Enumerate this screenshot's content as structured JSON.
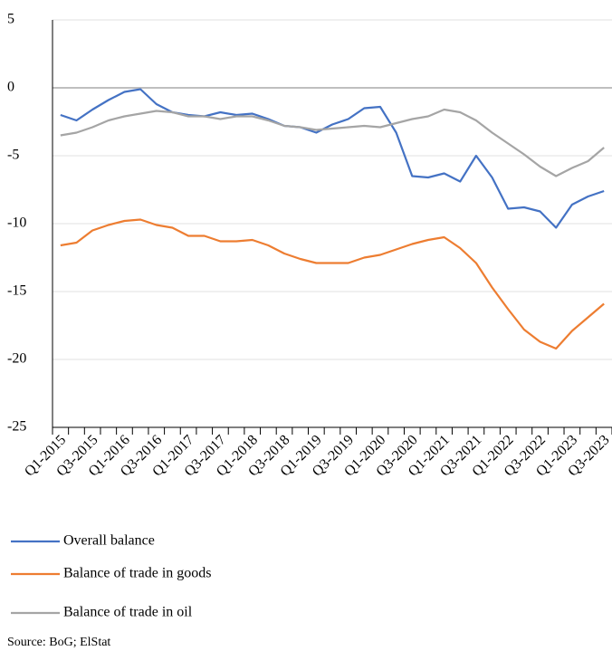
{
  "chart_data": {
    "type": "line",
    "categories": [
      "Q1-2015",
      null,
      "Q3-2015",
      null,
      "Q1-2016",
      null,
      "Q3-2016",
      null,
      "Q1-2017",
      null,
      "Q3-2017",
      null,
      "Q1-2018",
      null,
      "Q3-2018",
      null,
      "Q1-2019",
      null,
      "Q3-2019",
      null,
      "Q1-2020",
      null,
      "Q3-2020",
      null,
      "Q1-2021",
      null,
      "Q3-2021",
      null,
      "Q1-2022",
      null,
      "Q3-2022",
      null,
      "Q1-2023",
      null,
      "Q3-2023"
    ],
    "series": [
      {
        "name": "Overall balance",
        "color": "#4472c4",
        "values": [
          -2.0,
          -2.4,
          -1.6,
          -0.9,
          -0.3,
          -0.1,
          -1.2,
          -1.8,
          -2.0,
          -2.1,
          -1.8,
          -2.0,
          -1.9,
          -2.3,
          -2.8,
          -2.9,
          -3.3,
          -2.7,
          -2.3,
          -1.5,
          -1.4,
          -3.3,
          -6.5,
          -6.6,
          -6.3,
          -6.9,
          -5.0,
          -6.6,
          -8.9,
          -8.8,
          -9.1,
          -10.3,
          -8.6,
          -8.0,
          -7.6
        ]
      },
      {
        "name": "Balance of trade in goods",
        "color": "#ed7d31",
        "values": [
          -11.6,
          -11.4,
          -10.5,
          -10.1,
          -9.8,
          -9.7,
          -10.1,
          -10.3,
          -10.9,
          -10.9,
          -11.3,
          -11.3,
          -11.2,
          -11.6,
          -12.2,
          -12.6,
          -12.9,
          -12.9,
          -12.9,
          -12.5,
          -12.3,
          -11.9,
          -11.5,
          -11.2,
          -11.0,
          -11.8,
          -12.9,
          -14.7,
          -16.3,
          -17.8,
          -18.7,
          -19.2,
          -17.9,
          -16.9,
          -15.9
        ]
      },
      {
        "name": "Balance of trade in oil",
        "color": "#a5a5a5",
        "values": [
          -3.5,
          -3.3,
          -2.9,
          -2.4,
          -2.1,
          -1.9,
          -1.7,
          -1.8,
          -2.1,
          -2.1,
          -2.3,
          -2.1,
          -2.1,
          -2.4,
          -2.8,
          -2.9,
          -3.1,
          -3.0,
          -2.9,
          -2.8,
          -2.9,
          -2.6,
          -2.3,
          -2.1,
          -1.6,
          -1.8,
          -2.4,
          -3.3,
          -4.1,
          -4.9,
          -5.8,
          -6.5,
          -5.9,
          -5.4,
          -4.4
        ]
      }
    ],
    "ylim": [
      -25,
      5
    ],
    "yticks": [
      5,
      0,
      -5,
      -10,
      -15,
      -20,
      -25
    ],
    "grid": true,
    "legend": "bottom",
    "source": "Source: BoG; ElStat"
  }
}
